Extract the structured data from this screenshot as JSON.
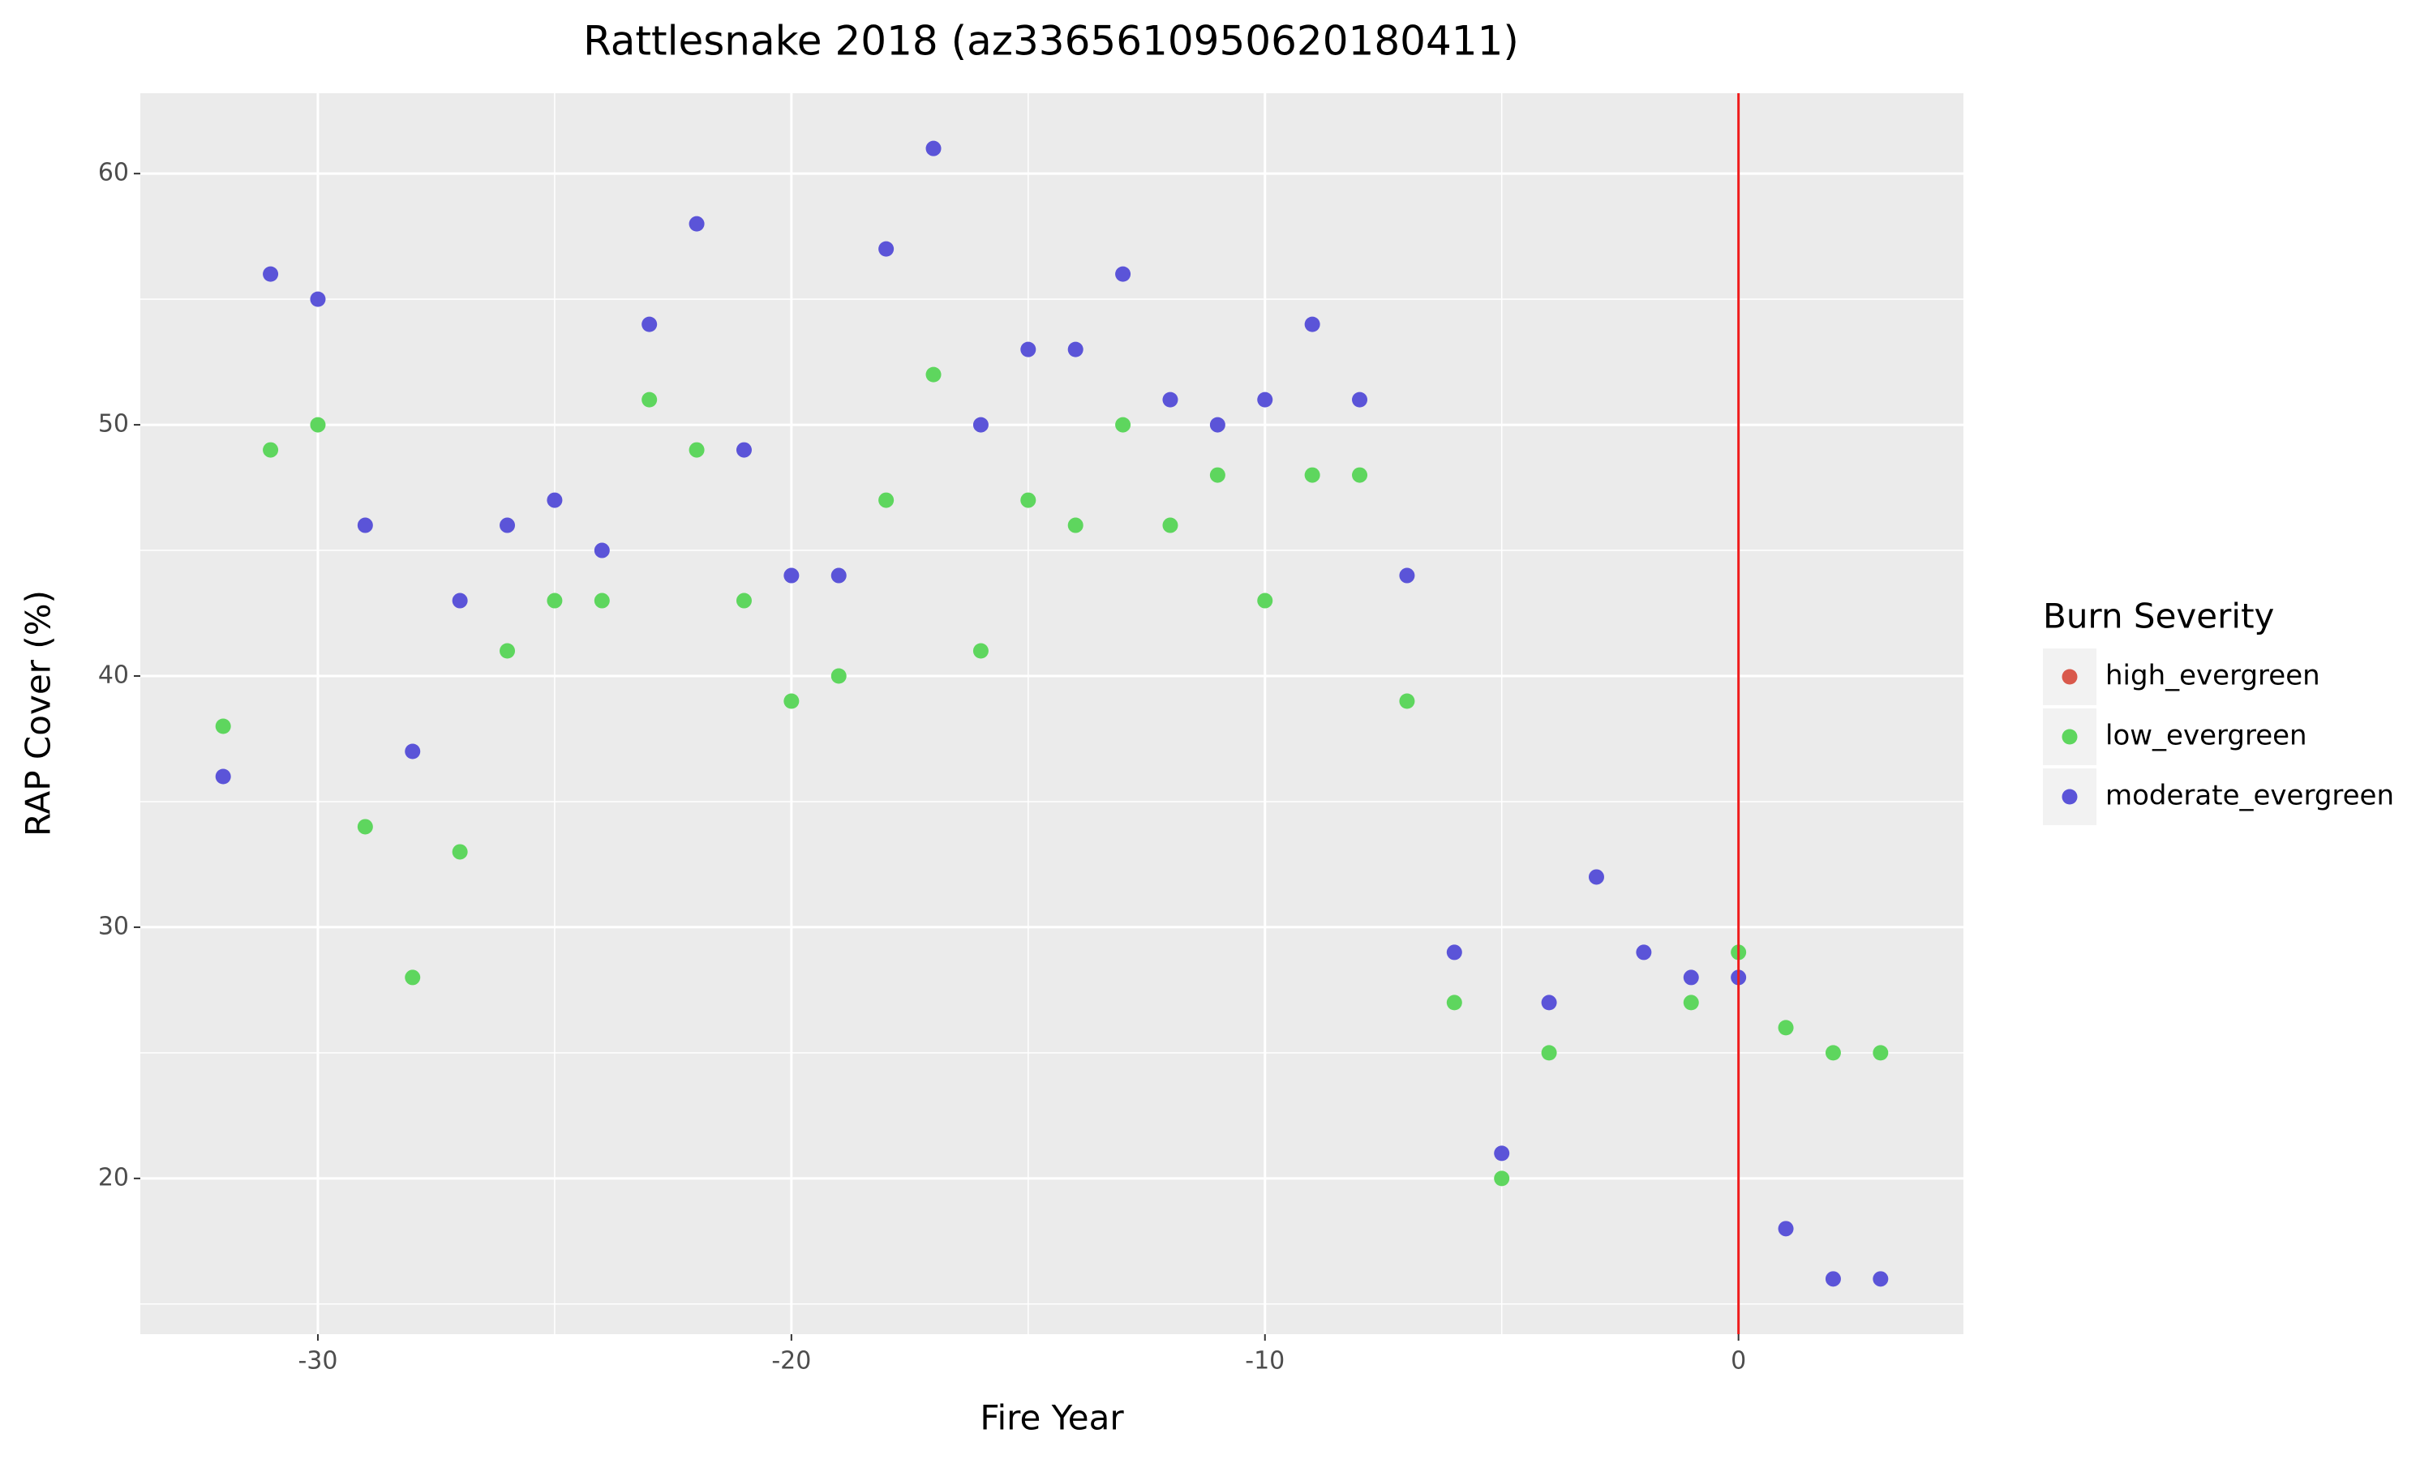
{
  "chart_data": {
    "type": "scatter",
    "title": "Rattlesnake 2018 (az3365610950620180411)",
    "x_label": "Fire Year",
    "y_label": "RAP Cover (%)",
    "legend_title": "Burn Severity",
    "legend_position": "right",
    "xlim": [
      -33.75,
      4.75
    ],
    "xticks": [
      -30,
      -20,
      -10,
      0
    ],
    "ylim": [
      13.8,
      63.2
    ],
    "yticks": [
      20,
      30,
      40,
      50,
      60
    ],
    "grid": true,
    "vline": 0,
    "vline_color": "#ee1c1c",
    "series": [
      {
        "name": "high_evergreen",
        "color": "#d9594c",
        "x": [],
        "values": []
      },
      {
        "name": "low_evergreen",
        "color": "#5ed65e",
        "x": [
          -32,
          -31,
          -30,
          -29,
          -28,
          -27,
          -26,
          -25,
          -24,
          -23,
          -22,
          -21,
          -20,
          -19,
          -18,
          -17,
          -16,
          -15,
          -14,
          -13,
          -12,
          -11,
          -10,
          -9,
          -8,
          -7,
          -6,
          -5,
          -4,
          -1,
          0,
          1,
          2,
          3
        ],
        "values": [
          38,
          49,
          50,
          34,
          28,
          33,
          41,
          43,
          43,
          51,
          49,
          43,
          39,
          40,
          47,
          52,
          41,
          47,
          46,
          50,
          46,
          48,
          43,
          48,
          48,
          39,
          27,
          20,
          25,
          27,
          29,
          26,
          25,
          25
        ]
      },
      {
        "name": "moderate_evergreen",
        "color": "#5b54d8",
        "x": [
          -32,
          -31,
          -30,
          -29,
          -28,
          -27,
          -26,
          -25,
          -24,
          -23,
          -22,
          -21,
          -20,
          -19,
          -18,
          -17,
          -16,
          -15,
          -14,
          -13,
          -12,
          -11,
          -10,
          -9,
          -8,
          -7,
          -6,
          -5,
          -4,
          -3,
          -2,
          -1,
          0,
          1,
          2,
          3
        ],
        "values": [
          36,
          56,
          55,
          46,
          37,
          43,
          46,
          47,
          45,
          54,
          58,
          49,
          44,
          44,
          57,
          61,
          50,
          53,
          53,
          56,
          51,
          50,
          51,
          54,
          51,
          44,
          29,
          21,
          27,
          32,
          29,
          28,
          28,
          18,
          16,
          16
        ]
      }
    ]
  }
}
